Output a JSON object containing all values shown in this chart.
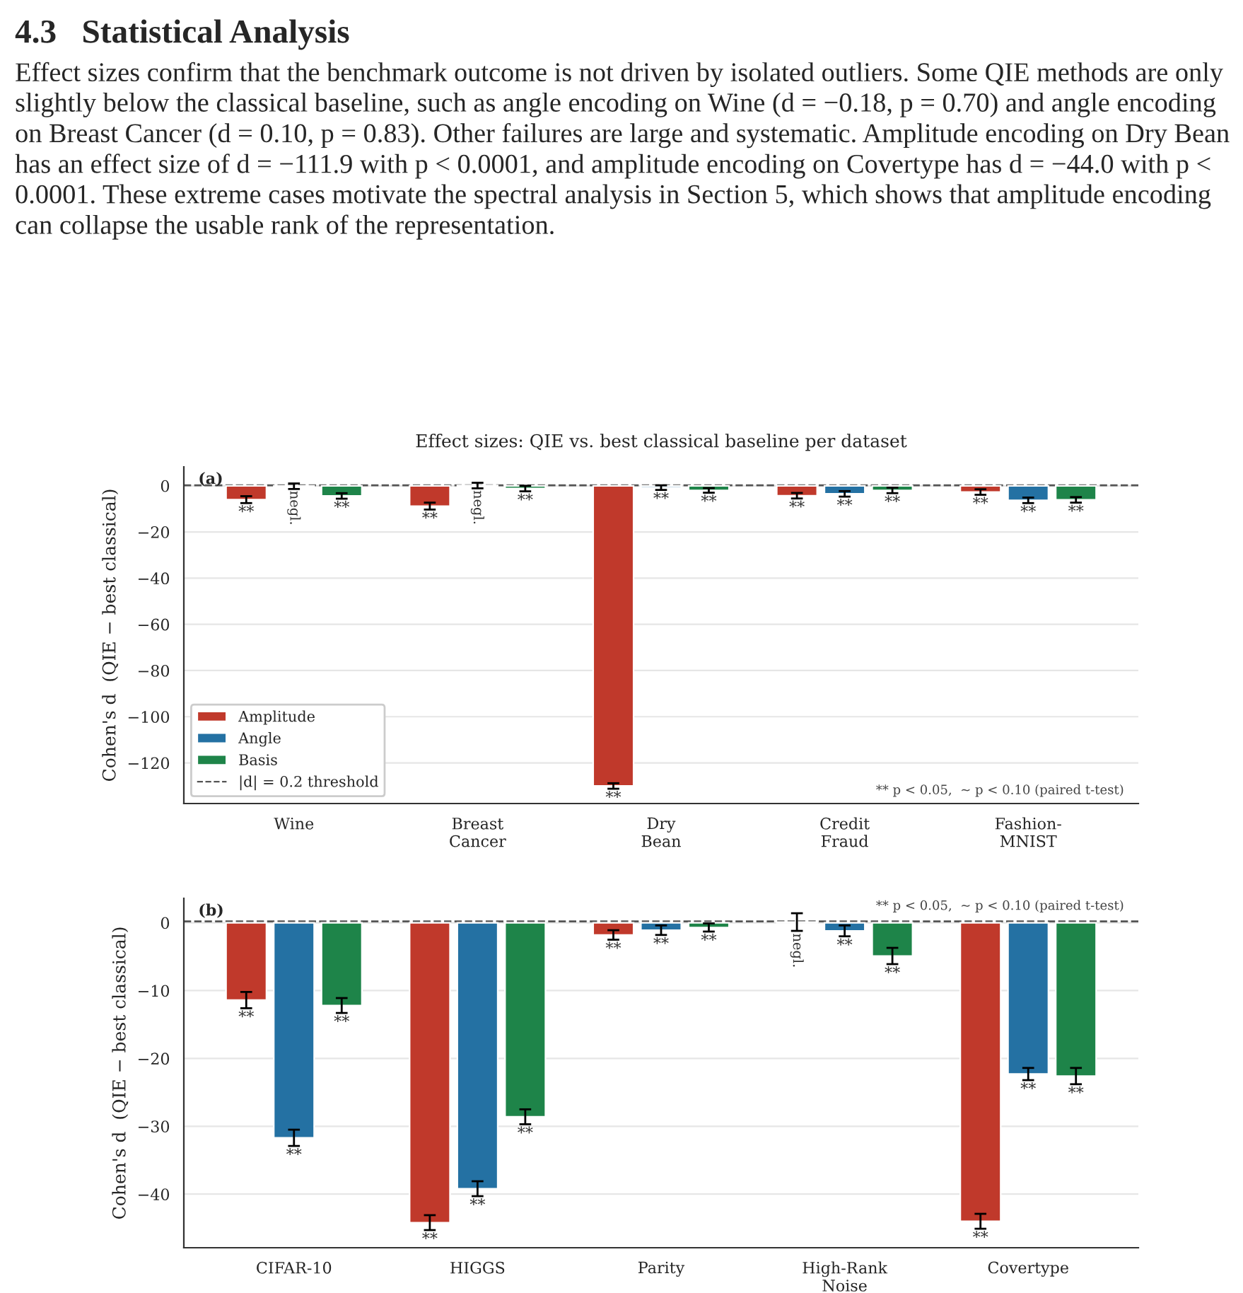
{
  "chart_data": [
    {
      "type": "bar",
      "title": "Effect sizes: QIE vs. best classical baseline per dataset",
      "ylabel": "Cohen's d  (QIE − best classical)",
      "annotations": [
        "4.3   Statistical Analysis",
        "Effect sizes confirm that the benchmark outcome is not driven by isolated outliers. Some QIE methods are only slightly below the classical baseline, such as angle encoding on Wine (d = −0.18, p = 0.70) and angle encoding on Breast Cancer (d = 0.10, p = 0.83). Other failures are large and systematic. Amplitude encoding on Dry Bean has an effect size of d = −111.9 with p < 0.0001, and amplitude encoding on Covertype has d = −44.0 with p < 0.0001. These extreme cases motivate the spectral analysis in Section 5, which shows that amplitude encoding can collapse the usable rank of the representation.",
        "(a)",
        "** p < 0.05,  ~ p < 0.10 (paired t-test)"
      ],
      "categories": [
        "Wine",
        "Breast\nCancer",
        "Dry\nBean",
        "Credit\nFraud",
        "Fashion-\nMNIST"
      ],
      "series": [
        {
          "name": "Amplitude",
          "color": "#c0392b",
          "values": [
            -6.0,
            -8.8,
            -130,
            -4.3,
            -2.7
          ],
          "errors": [
            1.5,
            1.5,
            1.2,
            1.2,
            1.2
          ],
          "value_labels": [
            "**",
            "**",
            "**",
            "**",
            "**"
          ]
        },
        {
          "name": "Angle",
          "color": "#2471a3",
          "values": [
            -0.2,
            0.1,
            -0.8,
            -3.5,
            -6.3
          ],
          "errors": [
            1.2,
            1.2,
            1.0,
            1.2,
            1.2
          ],
          "value_labels": [
            "negl.",
            "negl.",
            "**",
            "**",
            "**"
          ]
        },
        {
          "name": "Basis",
          "color": "#1e8449",
          "values": [
            -4.4,
            -1.2,
            -2.0,
            -2.0,
            -6.1
          ],
          "errors": [
            1.2,
            1.2,
            1.0,
            1.2,
            1.2
          ],
          "value_labels": [
            "**",
            "**",
            "**",
            "**",
            "**"
          ]
        }
      ],
      "ylim": [
        -137.6,
        8.2
      ],
      "yticks": [
        0,
        -20,
        -40,
        -60,
        -80,
        -100,
        -120
      ],
      "ref_lines": [
        {
          "axis": "y",
          "value": 0.2,
          "label": "|d| = 0.2 threshold",
          "color": "#555555",
          "line_style": "dashed"
        }
      ],
      "grid": "y",
      "legend": "bottom left"
    },
    {
      "type": "bar",
      "ylabel": "Cohen's d  (QIE − best classical)",
      "annotations": [
        "(b)",
        "** p < 0.05,  ~ p < 0.10 (paired t-test)"
      ],
      "categories": [
        "CIFAR-10",
        "HIGGS",
        "Parity",
        "High-Rank\nNoise",
        "Covertype"
      ],
      "series": [
        {
          "color": "#c0392b",
          "values": [
            -11.4,
            -44.2,
            -1.8,
            0.1,
            -44.0
          ],
          "errors": [
            1.2,
            1.1,
            0.7,
            1.3,
            1.1
          ],
          "value_labels": [
            "**",
            "**",
            "**",
            "negl.",
            "**"
          ]
        },
        {
          "color": "#2471a3",
          "values": [
            -31.7,
            -39.2,
            -1.1,
            -1.2,
            -22.3
          ],
          "errors": [
            1.2,
            1.1,
            0.7,
            0.8,
            0.9
          ],
          "value_labels": [
            "**",
            "**",
            "**",
            "**",
            "**"
          ]
        },
        {
          "color": "#1e8449",
          "values": [
            -12.2,
            -28.6,
            -0.7,
            -4.9,
            -22.6
          ],
          "errors": [
            1.1,
            1.1,
            0.6,
            1.2,
            1.2
          ],
          "value_labels": [
            "**",
            "**",
            "**",
            "**",
            "**"
          ]
        }
      ],
      "ylim": [
        -47.9,
        3.6
      ],
      "yticks": [
        0,
        -10,
        -20,
        -30,
        -40
      ],
      "ref_lines": [
        {
          "axis": "y",
          "value": 0.2,
          "color": "#555555",
          "line_style": "dashed"
        }
      ],
      "grid": "y",
      "legend": false
    }
  ]
}
